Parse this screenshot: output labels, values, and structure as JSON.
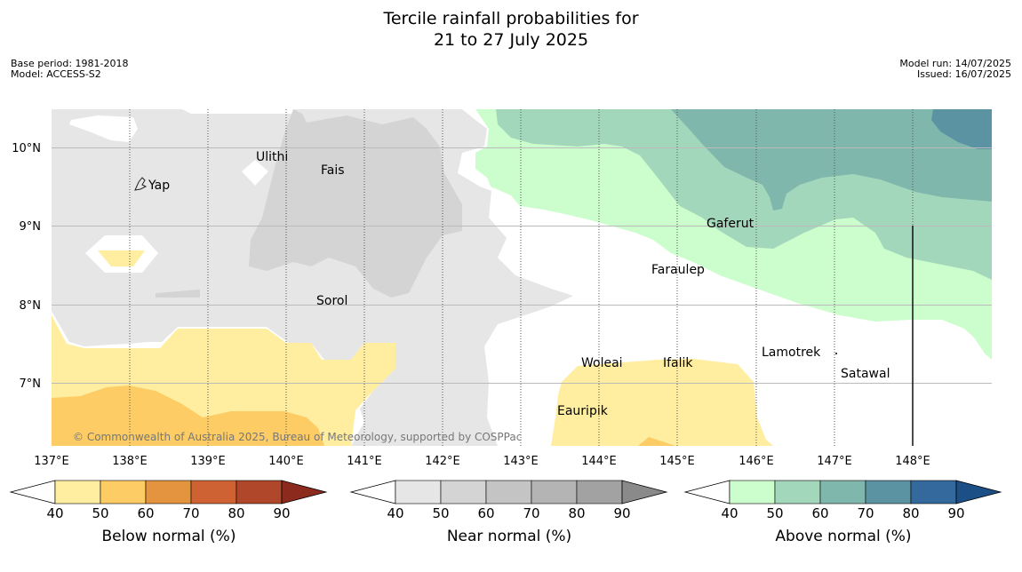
{
  "title_line1": "Tercile rainfall probabilities for",
  "title_line2": "21 to 27 July 2025",
  "base_period": "Base period: 1981-2018",
  "model": "Model: ACCESS-S2",
  "model_run": "Model run: 14/07/2025",
  "issued": "Issued: 16/07/2025",
  "copyright": "© Commonwealth of Australia 2025, Bureau of Meteorology, supported by COSPPac",
  "lon_labels": [
    "137°E",
    "138°E",
    "139°E",
    "140°E",
    "141°E",
    "142°E",
    "143°E",
    "144°E",
    "145°E",
    "146°E",
    "147°E",
    "148°E"
  ],
  "lat_labels": [
    "10°N",
    "9°N",
    "8°N",
    "7°N"
  ],
  "places": [
    "Ulithi",
    "Fais",
    "Yap",
    "Gaferut",
    "Faraulep",
    "Sorol",
    "Lamotrek",
    "Woleai",
    "Ifalik",
    "Satawal",
    "Eauripik"
  ],
  "colorbars": [
    {
      "title": "Below normal (%)",
      "ticks": [
        "40",
        "50",
        "60",
        "70",
        "80",
        "90"
      ],
      "colors": [
        "#ffeea0",
        "#fdcc64",
        "#e4943f",
        "#cf6232",
        "#b0472a",
        "#8c2a1d"
      ]
    },
    {
      "title": "Near normal (%)",
      "ticks": [
        "40",
        "50",
        "60",
        "70",
        "80",
        "90"
      ],
      "colors": [
        "#e6e6e6",
        "#d4d4d4",
        "#c4c4c4",
        "#b4b4b4",
        "#a2a2a2",
        "#8a8a8a"
      ]
    },
    {
      "title": "Above normal (%)",
      "ticks": [
        "40",
        "50",
        "60",
        "70",
        "80",
        "90"
      ],
      "colors": [
        "#ccfdcc",
        "#a3d7bb",
        "#80b7ac",
        "#5b93a3",
        "#33699c",
        "#1b4f86"
      ]
    }
  ]
}
